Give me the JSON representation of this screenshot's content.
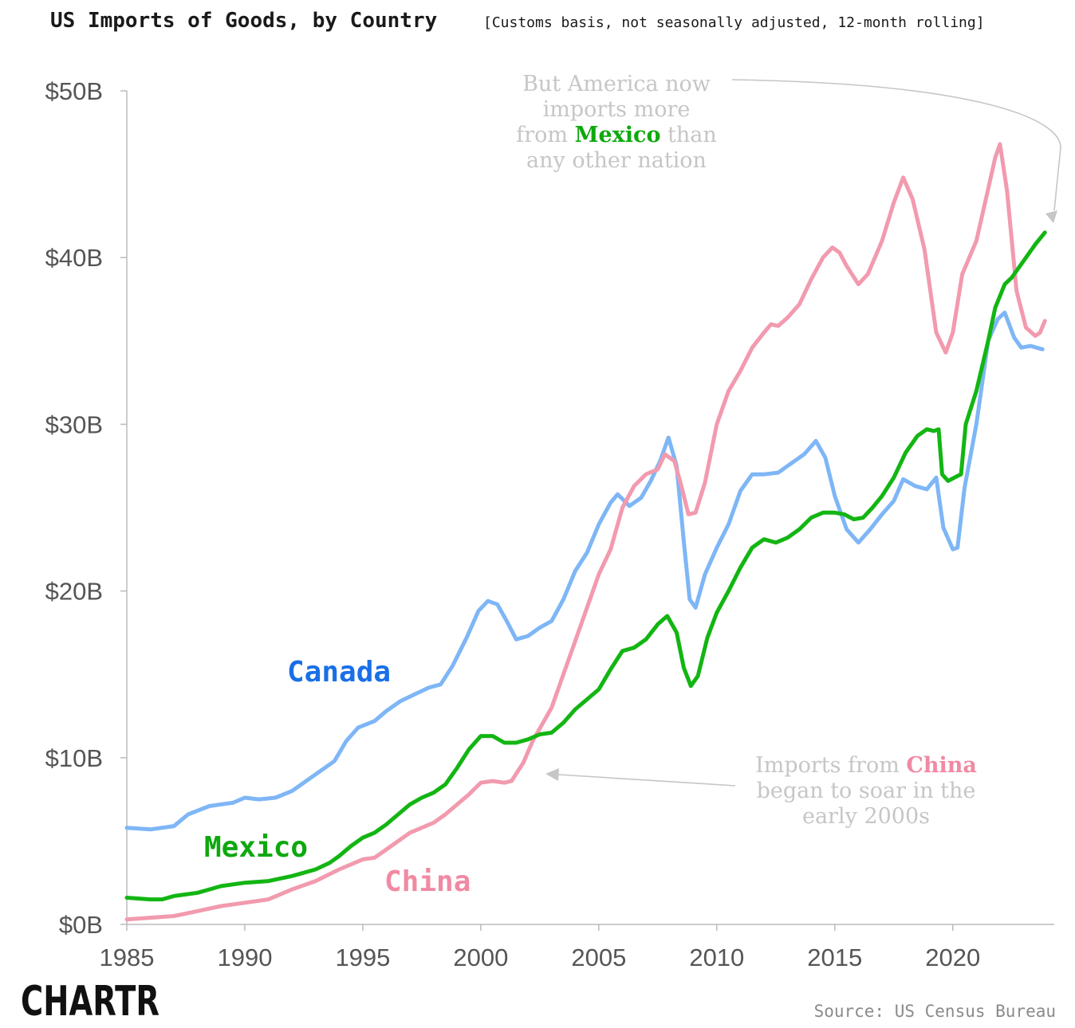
{
  "header": {
    "title": "US Imports of Goods, by Country",
    "subtitle": "[Customs basis, not seasonally adjusted, 12-month rolling]"
  },
  "annotations": {
    "mexico": {
      "line1": "But America now",
      "line2": "imports more",
      "line3_pre": "from ",
      "line3_hi": "Mexico",
      "line3_post": " than",
      "line4": "any other nation"
    },
    "china": {
      "line1_pre": "Imports from ",
      "line1_hi": "China",
      "line2": "began to soar in the",
      "line3": "early 2000s"
    }
  },
  "footer": {
    "source": "Source: US Census Bureau",
    "logo": "CHARTR"
  },
  "colors": {
    "canada": "#7eb6f6",
    "mexico": "#13b513",
    "china": "#f29aae",
    "canada_label": "#1a6fe8",
    "mexico_label": "#0ea80e",
    "china_label": "#f08aa3",
    "axis": "#bbbbbb",
    "annotation": "#c6c6c6"
  },
  "chart_data": {
    "type": "line",
    "title": "US Imports of Goods, by Country",
    "subtitle": "[Customs basis, not seasonally adjusted, 12-month rolling]",
    "xlabel": "",
    "ylabel": "",
    "xlim": [
      1985,
      2024.3
    ],
    "ylim": [
      0,
      50
    ],
    "x_ticks": [
      1985,
      1990,
      1995,
      2000,
      2005,
      2010,
      2015,
      2020
    ],
    "y_ticks": [
      0,
      10,
      20,
      30,
      40,
      50
    ],
    "y_tick_labels": [
      "$0B",
      "$10B",
      "$20B",
      "$30B",
      "$40B",
      "$50B"
    ],
    "grid": false,
    "legend": "inline labels",
    "series": [
      {
        "name": "Canada",
        "points": [
          [
            1985,
            5.8
          ],
          [
            1986,
            5.7
          ],
          [
            1987,
            5.9
          ],
          [
            1987.6,
            6.6
          ],
          [
            1988.5,
            7.1
          ],
          [
            1989.5,
            7.3
          ],
          [
            1990,
            7.6
          ],
          [
            1990.6,
            7.5
          ],
          [
            1991.3,
            7.6
          ],
          [
            1992,
            8.0
          ],
          [
            1992.6,
            8.6
          ],
          [
            1993.2,
            9.2
          ],
          [
            1993.8,
            9.8
          ],
          [
            1994.3,
            11.0
          ],
          [
            1994.8,
            11.8
          ],
          [
            1995.5,
            12.2
          ],
          [
            1996,
            12.8
          ],
          [
            1996.6,
            13.4
          ],
          [
            1997.2,
            13.8
          ],
          [
            1997.8,
            14.2
          ],
          [
            1998.3,
            14.4
          ],
          [
            1998.8,
            15.5
          ],
          [
            1999.4,
            17.2
          ],
          [
            1999.9,
            18.8
          ],
          [
            2000.3,
            19.4
          ],
          [
            2000.7,
            19.2
          ],
          [
            2001.1,
            18.2
          ],
          [
            2001.5,
            17.1
          ],
          [
            2002,
            17.3
          ],
          [
            2002.5,
            17.8
          ],
          [
            2003,
            18.2
          ],
          [
            2003.5,
            19.5
          ],
          [
            2004,
            21.2
          ],
          [
            2004.5,
            22.3
          ],
          [
            2005,
            24.0
          ],
          [
            2005.5,
            25.3
          ],
          [
            2005.8,
            25.8
          ],
          [
            2006.3,
            25.1
          ],
          [
            2006.8,
            25.6
          ],
          [
            2007.2,
            26.6
          ],
          [
            2007.6,
            27.8
          ],
          [
            2007.95,
            29.2
          ],
          [
            2008.3,
            27.5
          ],
          [
            2008.6,
            23.0
          ],
          [
            2008.85,
            19.5
          ],
          [
            2009.1,
            19.0
          ],
          [
            2009.5,
            21.0
          ],
          [
            2010,
            22.6
          ],
          [
            2010.5,
            24.0
          ],
          [
            2011,
            26.0
          ],
          [
            2011.5,
            27.0
          ],
          [
            2012,
            27.0
          ],
          [
            2012.6,
            27.1
          ],
          [
            2013.2,
            27.7
          ],
          [
            2013.7,
            28.2
          ],
          [
            2014.2,
            29.0
          ],
          [
            2014.6,
            28.0
          ],
          [
            2015,
            25.7
          ],
          [
            2015.5,
            23.7
          ],
          [
            2016,
            22.9
          ],
          [
            2016.5,
            23.7
          ],
          [
            2017,
            24.6
          ],
          [
            2017.5,
            25.4
          ],
          [
            2017.9,
            26.7
          ],
          [
            2018.4,
            26.3
          ],
          [
            2018.9,
            26.1
          ],
          [
            2019.3,
            26.8
          ],
          [
            2019.6,
            23.8
          ],
          [
            2020,
            22.5
          ],
          [
            2020.2,
            22.6
          ],
          [
            2020.5,
            26.2
          ],
          [
            2021,
            30.0
          ],
          [
            2021.5,
            35.0
          ],
          [
            2021.9,
            36.3
          ],
          [
            2022.2,
            36.7
          ],
          [
            2022.6,
            35.2
          ],
          [
            2022.9,
            34.6
          ],
          [
            2023.3,
            34.7
          ],
          [
            2023.8,
            34.5
          ]
        ]
      },
      {
        "name": "Mexico",
        "points": [
          [
            1985,
            1.6
          ],
          [
            1986,
            1.5
          ],
          [
            1986.5,
            1.5
          ],
          [
            1987,
            1.7
          ],
          [
            1988,
            1.9
          ],
          [
            1989,
            2.3
          ],
          [
            1990,
            2.5
          ],
          [
            1991,
            2.6
          ],
          [
            1992,
            2.9
          ],
          [
            1993,
            3.3
          ],
          [
            1993.6,
            3.7
          ],
          [
            1994,
            4.1
          ],
          [
            1994.5,
            4.7
          ],
          [
            1995,
            5.2
          ],
          [
            1995.5,
            5.5
          ],
          [
            1996,
            6.0
          ],
          [
            1996.5,
            6.6
          ],
          [
            1997,
            7.2
          ],
          [
            1997.5,
            7.6
          ],
          [
            1998,
            7.9
          ],
          [
            1998.5,
            8.4
          ],
          [
            1999,
            9.4
          ],
          [
            1999.5,
            10.5
          ],
          [
            2000,
            11.3
          ],
          [
            2000.5,
            11.3
          ],
          [
            2001,
            10.9
          ],
          [
            2001.5,
            10.9
          ],
          [
            2002,
            11.1
          ],
          [
            2002.5,
            11.4
          ],
          [
            2003,
            11.5
          ],
          [
            2003.5,
            12.1
          ],
          [
            2004,
            12.9
          ],
          [
            2004.5,
            13.5
          ],
          [
            2005,
            14.1
          ],
          [
            2005.5,
            15.3
          ],
          [
            2006,
            16.4
          ],
          [
            2006.5,
            16.6
          ],
          [
            2007,
            17.1
          ],
          [
            2007.5,
            18.0
          ],
          [
            2007.9,
            18.5
          ],
          [
            2008.3,
            17.5
          ],
          [
            2008.6,
            15.4
          ],
          [
            2008.9,
            14.3
          ],
          [
            2009.2,
            14.9
          ],
          [
            2009.6,
            17.2
          ],
          [
            2010,
            18.7
          ],
          [
            2010.5,
            20.0
          ],
          [
            2011,
            21.4
          ],
          [
            2011.5,
            22.6
          ],
          [
            2012,
            23.1
          ],
          [
            2012.5,
            22.9
          ],
          [
            2013,
            23.2
          ],
          [
            2013.5,
            23.7
          ],
          [
            2014,
            24.4
          ],
          [
            2014.5,
            24.7
          ],
          [
            2015,
            24.7
          ],
          [
            2015.4,
            24.6
          ],
          [
            2015.8,
            24.3
          ],
          [
            2016.2,
            24.4
          ],
          [
            2016.6,
            25.0
          ],
          [
            2017,
            25.7
          ],
          [
            2017.5,
            26.8
          ],
          [
            2018,
            28.3
          ],
          [
            2018.5,
            29.3
          ],
          [
            2018.9,
            29.7
          ],
          [
            2019.2,
            29.6
          ],
          [
            2019.4,
            29.7
          ],
          [
            2019.55,
            27.0
          ],
          [
            2019.8,
            26.6
          ],
          [
            2020.2,
            26.9
          ],
          [
            2020.35,
            27.0
          ],
          [
            2020.55,
            30.0
          ],
          [
            2021,
            32.0
          ],
          [
            2021.5,
            35.0
          ],
          [
            2021.8,
            37.0
          ],
          [
            2022.2,
            38.4
          ],
          [
            2022.5,
            38.8
          ],
          [
            2023,
            39.8
          ],
          [
            2023.5,
            40.8
          ],
          [
            2023.9,
            41.5
          ]
        ]
      },
      {
        "name": "China",
        "points": [
          [
            1985,
            0.3
          ],
          [
            1986,
            0.4
          ],
          [
            1987,
            0.5
          ],
          [
            1988,
            0.8
          ],
          [
            1989,
            1.1
          ],
          [
            1990,
            1.3
          ],
          [
            1991,
            1.5
          ],
          [
            1992,
            2.1
          ],
          [
            1993,
            2.6
          ],
          [
            1994,
            3.3
          ],
          [
            1995,
            3.9
          ],
          [
            1995.5,
            4.0
          ],
          [
            1996,
            4.5
          ],
          [
            1996.5,
            5.0
          ],
          [
            1997,
            5.5
          ],
          [
            1997.5,
            5.8
          ],
          [
            1998,
            6.1
          ],
          [
            1998.5,
            6.6
          ],
          [
            1999,
            7.2
          ],
          [
            1999.5,
            7.8
          ],
          [
            2000,
            8.5
          ],
          [
            2000.5,
            8.6
          ],
          [
            2001,
            8.5
          ],
          [
            2001.3,
            8.6
          ],
          [
            2001.8,
            9.7
          ],
          [
            2002.2,
            11.0
          ],
          [
            2002.6,
            12.0
          ],
          [
            2003,
            13.0
          ],
          [
            2003.5,
            15.0
          ],
          [
            2004,
            17.0
          ],
          [
            2004.5,
            19.0
          ],
          [
            2005,
            21.0
          ],
          [
            2005.5,
            22.5
          ],
          [
            2006,
            25.0
          ],
          [
            2006.5,
            26.3
          ],
          [
            2007,
            27.0
          ],
          [
            2007.5,
            27.3
          ],
          [
            2007.8,
            28.2
          ],
          [
            2008.2,
            27.8
          ],
          [
            2008.5,
            26.3
          ],
          [
            2008.8,
            24.6
          ],
          [
            2009.1,
            24.7
          ],
          [
            2009.5,
            26.5
          ],
          [
            2010,
            30.0
          ],
          [
            2010.5,
            32.0
          ],
          [
            2011,
            33.2
          ],
          [
            2011.5,
            34.6
          ],
          [
            2012,
            35.5
          ],
          [
            2012.3,
            36.0
          ],
          [
            2012.6,
            35.9
          ],
          [
            2013,
            36.4
          ],
          [
            2013.5,
            37.2
          ],
          [
            2014,
            38.7
          ],
          [
            2014.5,
            40.0
          ],
          [
            2014.9,
            40.6
          ],
          [
            2015.2,
            40.3
          ],
          [
            2015.5,
            39.5
          ],
          [
            2016,
            38.4
          ],
          [
            2016.4,
            39.0
          ],
          [
            2017,
            41.0
          ],
          [
            2017.5,
            43.3
          ],
          [
            2017.9,
            44.8
          ],
          [
            2018.3,
            43.5
          ],
          [
            2018.8,
            40.5
          ],
          [
            2019.3,
            35.5
          ],
          [
            2019.7,
            34.3
          ],
          [
            2020,
            35.5
          ],
          [
            2020.4,
            39.0
          ],
          [
            2021,
            41.0
          ],
          [
            2021.4,
            43.5
          ],
          [
            2021.8,
            46.0
          ],
          [
            2022,
            46.8
          ],
          [
            2022.3,
            44.0
          ],
          [
            2022.7,
            38.0
          ],
          [
            2023.1,
            35.8
          ],
          [
            2023.5,
            35.3
          ],
          [
            2023.7,
            35.5
          ],
          [
            2023.9,
            36.2
          ]
        ]
      }
    ]
  }
}
